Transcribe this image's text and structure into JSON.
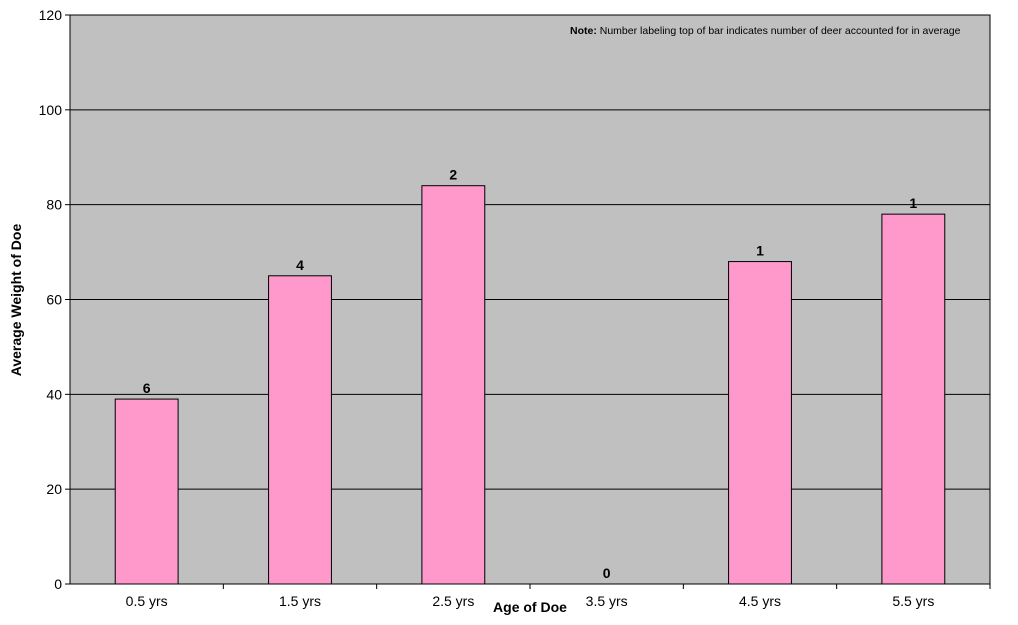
{
  "chart_data": {
    "type": "bar",
    "categories": [
      "0.5 yrs",
      "1.5 yrs",
      "2.5 yrs",
      "3.5 yrs",
      "4.5 yrs",
      "5.5 yrs"
    ],
    "values": [
      39,
      65,
      84,
      0,
      68,
      78
    ],
    "data_labels": [
      "6",
      "4",
      "2",
      "0",
      "1",
      "1"
    ],
    "xlabel": "Age of Doe",
    "ylabel": "Average Weight of Doe",
    "ylim": [
      0,
      120
    ],
    "yticks": [
      "0",
      "20",
      "40",
      "60",
      "80",
      "100",
      "120"
    ],
    "grid": true,
    "colors": {
      "bar": "#ff99cc",
      "plot_background": "#c0c0c0"
    }
  },
  "note": {
    "label": "Note:",
    "text": " Number labeling top of bar indicates number of deer accounted for in average"
  }
}
